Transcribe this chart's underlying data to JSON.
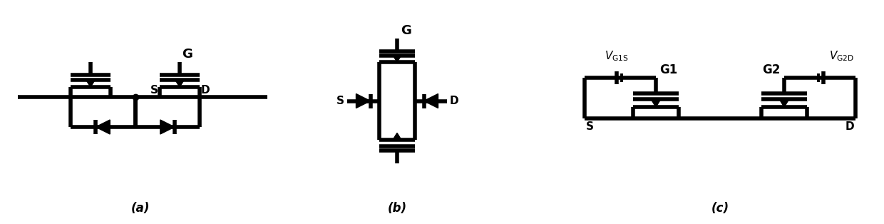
{
  "background": "#ffffff",
  "lw": 2.8,
  "lw_t": 4.0,
  "label_a": "(a)",
  "label_b": "(b)",
  "label_c": "(c)"
}
